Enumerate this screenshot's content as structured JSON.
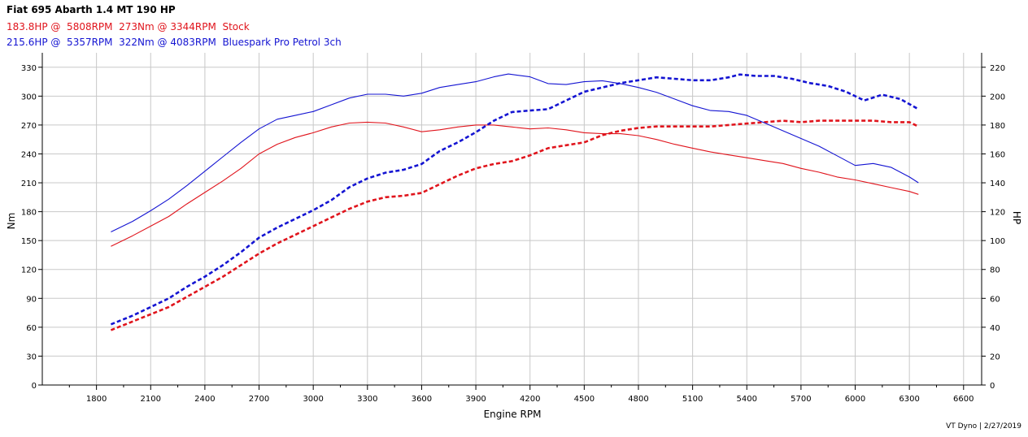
{
  "header": {
    "title": "Fiat 695 Abarth 1.4 MT 190 HP",
    "stock_line": "183.8HP @  5808RPM  273Nm @ 3344RPM  Stock",
    "tuned_line": "215.6HP @  5357RPM  322Nm @ 4083RPM  Bluespark Pro Petrol 3ch"
  },
  "footer": "VT Dyno | 2/27/2019",
  "colors": {
    "stock": "#e0141c",
    "tuned": "#1414d2",
    "grid": "#c8c8c8",
    "axis": "#000000"
  },
  "chart_data": {
    "type": "line",
    "title": "Fiat 695 Abarth 1.4 MT 190 HP",
    "xlabel": "Engine RPM",
    "ylabel": "Nm",
    "y2label": "HP",
    "xlim": [
      1500,
      6700
    ],
    "ylim": [
      0,
      345
    ],
    "y2lim": [
      0,
      230
    ],
    "x_ticks": [
      "1800",
      "2100",
      "2400",
      "2700",
      "3000",
      "3300",
      "3600",
      "3900",
      "4200",
      "4500",
      "4800",
      "5100",
      "5400",
      "5700",
      "6000",
      "6300",
      "6600"
    ],
    "y_ticks": [
      "0",
      "30",
      "60",
      "90",
      "120",
      "150",
      "180",
      "210",
      "240",
      "270",
      "300",
      "330"
    ],
    "y2_ticks": [
      "0",
      "20",
      "40",
      "60",
      "80",
      "100",
      "120",
      "140",
      "160",
      "180",
      "200",
      "220"
    ],
    "grid": true,
    "series": [
      {
        "name": "Stock",
        "kind": "torque",
        "axis": "left",
        "color": "#e0141c",
        "dash": false,
        "x": [
          1880,
          2000,
          2100,
          2200,
          2300,
          2400,
          2500,
          2600,
          2700,
          2800,
          2900,
          3000,
          3100,
          3200,
          3300,
          3400,
          3500,
          3600,
          3700,
          3800,
          3900,
          4000,
          4100,
          4200,
          4300,
          4400,
          4500,
          4600,
          4700,
          4800,
          4900,
          5000,
          5100,
          5200,
          5300,
          5400,
          5500,
          5600,
          5700,
          5800,
          5900,
          6000,
          6100,
          6200,
          6300,
          6350
        ],
        "y": [
          144,
          155,
          165,
          175,
          188,
          200,
          212,
          225,
          240,
          250,
          257,
          262,
          268,
          272,
          273,
          272,
          268,
          263,
          265,
          268,
          270,
          270,
          268,
          266,
          267,
          265,
          262,
          261,
          261,
          259,
          255,
          250,
          246,
          242,
          239,
          236,
          233,
          230,
          225,
          221,
          216,
          213,
          209,
          205,
          201,
          198
        ]
      },
      {
        "name": "Stock",
        "kind": "power",
        "axis": "right",
        "color": "#e0141c",
        "dash": true,
        "x": [
          1880,
          2000,
          2100,
          2200,
          2300,
          2400,
          2500,
          2600,
          2700,
          2800,
          2900,
          3000,
          3100,
          3200,
          3300,
          3400,
          3500,
          3600,
          3700,
          3800,
          3900,
          4000,
          4100,
          4200,
          4300,
          4400,
          4500,
          4600,
          4700,
          4800,
          4900,
          5000,
          5100,
          5200,
          5300,
          5400,
          5500,
          5600,
          5700,
          5800,
          5900,
          6000,
          6100,
          6200,
          6300,
          6350
        ],
        "y": [
          38,
          44,
          49,
          54,
          61,
          68,
          75,
          83,
          91,
          98,
          104,
          110,
          116,
          122,
          127,
          130,
          131,
          133,
          139,
          145,
          150,
          153,
          155,
          159,
          164,
          166,
          168,
          173,
          176,
          178,
          179,
          179,
          179,
          179,
          180,
          181,
          182,
          183,
          182,
          183,
          183,
          183,
          183,
          182,
          182,
          179
        ]
      },
      {
        "name": "Bluespark Pro Petrol 3ch",
        "kind": "torque",
        "axis": "left",
        "color": "#1414d2",
        "dash": false,
        "x": [
          1880,
          2000,
          2100,
          2200,
          2300,
          2400,
          2500,
          2600,
          2700,
          2800,
          2900,
          3000,
          3100,
          3200,
          3300,
          3400,
          3500,
          3600,
          3700,
          3800,
          3900,
          4000,
          4080,
          4200,
          4300,
          4400,
          4500,
          4600,
          4700,
          4800,
          4900,
          5000,
          5100,
          5200,
          5300,
          5400,
          5500,
          5600,
          5700,
          5800,
          5900,
          6000,
          6100,
          6200,
          6300,
          6350
        ],
        "y": [
          159,
          170,
          181,
          193,
          207,
          222,
          237,
          252,
          266,
          276,
          280,
          284,
          291,
          298,
          302,
          302,
          300,
          303,
          309,
          312,
          315,
          320,
          323,
          320,
          313,
          312,
          315,
          316,
          313,
          309,
          304,
          297,
          290,
          285,
          284,
          280,
          272,
          264,
          256,
          248,
          238,
          228,
          230,
          226,
          216,
          210
        ]
      },
      {
        "name": "Bluespark Pro Petrol 3ch",
        "kind": "power",
        "axis": "right",
        "color": "#1414d2",
        "dash": true,
        "x": [
          1880,
          2000,
          2100,
          2200,
          2300,
          2400,
          2500,
          2600,
          2700,
          2800,
          2900,
          3000,
          3100,
          3200,
          3300,
          3400,
          3500,
          3600,
          3700,
          3800,
          3900,
          4000,
          4100,
          4200,
          4300,
          4400,
          4500,
          4600,
          4700,
          4800,
          4900,
          5000,
          5100,
          5200,
          5300,
          5360,
          5450,
          5550,
          5650,
          5750,
          5850,
          5950,
          6050,
          6150,
          6250,
          6350
        ],
        "y": [
          42,
          48,
          54,
          60,
          68,
          75,
          83,
          92,
          102,
          109,
          115,
          121,
          128,
          137,
          143,
          147,
          149,
          153,
          162,
          168,
          175,
          183,
          189,
          190,
          191,
          197,
          203,
          206,
          209,
          211,
          213,
          212,
          211,
          211,
          213,
          215,
          214,
          214,
          212,
          209,
          207,
          203,
          197,
          201,
          198,
          191
        ]
      }
    ]
  }
}
